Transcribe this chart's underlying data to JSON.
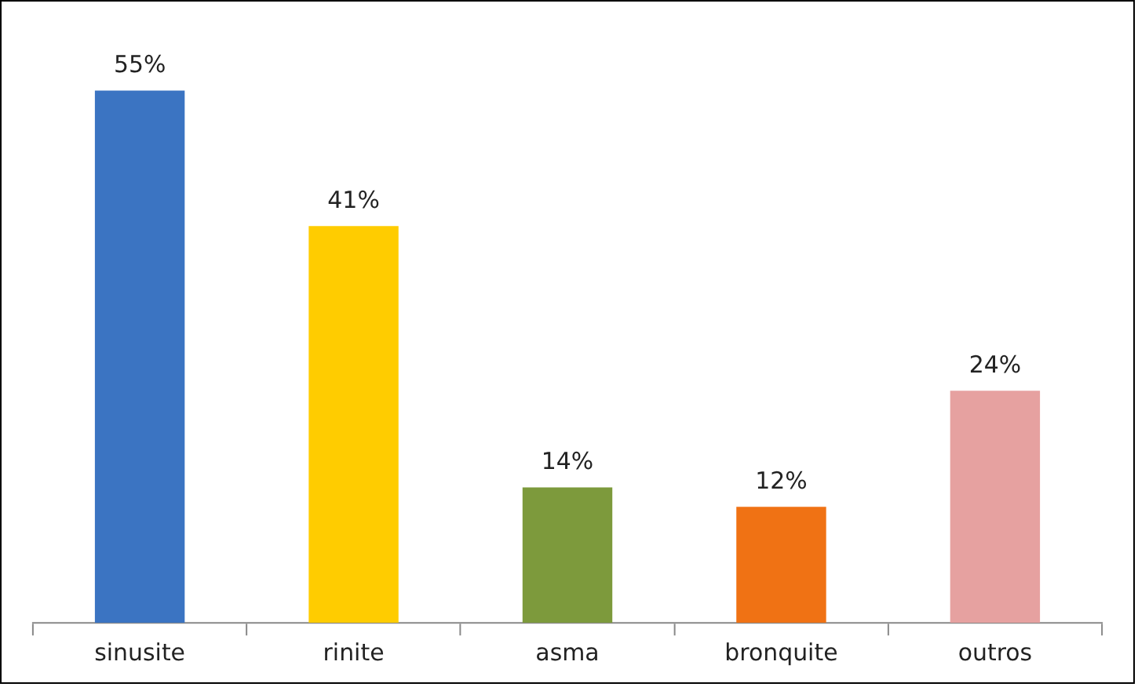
{
  "chart_data": {
    "type": "bar",
    "categories": [
      "sinusite",
      "rinite",
      "asma",
      "bronquite",
      "outros"
    ],
    "values": [
      55,
      41,
      14,
      12,
      24
    ],
    "colors": [
      "#3b74c2",
      "#ffcc00",
      "#7d9a3c",
      "#f07214",
      "#e6a1a0"
    ],
    "value_labels": [
      "55%",
      "41%",
      "14%",
      "12%",
      "24%"
    ],
    "grid": false,
    "legend": false
  }
}
